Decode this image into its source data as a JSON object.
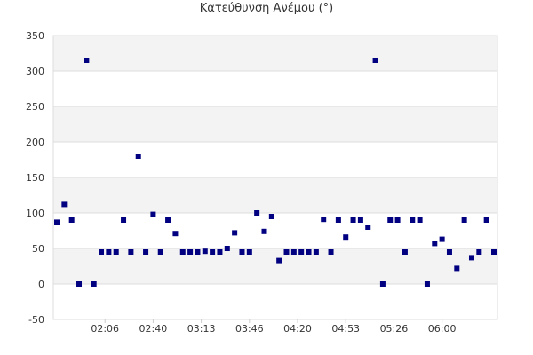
{
  "chart_data": {
    "type": "scatter",
    "title": "Κατεύθυνση Ανέμου (°)",
    "xlabel": "",
    "ylabel": "",
    "ylim": [
      -50,
      350
    ],
    "y_ticks": [
      -50,
      0,
      50,
      100,
      150,
      200,
      250,
      300,
      350
    ],
    "x_ticks": [
      "02:06",
      "02:40",
      "03:13",
      "03:46",
      "04:20",
      "04:53",
      "05:26",
      "06:00"
    ],
    "x_tick_index": [
      6.5,
      13,
      19.5,
      26,
      32.5,
      39,
      45.5,
      52
    ],
    "x_index_range": [
      0,
      59
    ],
    "grid": true,
    "band_colors": [
      "#f3f3f3",
      "#ffffff"
    ],
    "marker_color": "#000080",
    "series": [
      {
        "values": [
          87,
          112,
          90,
          0,
          315,
          0,
          45,
          45,
          45,
          90,
          45,
          180,
          45,
          98,
          45,
          90,
          71,
          45,
          45,
          45,
          46,
          45,
          45,
          50,
          72,
          45,
          45,
          100,
          74,
          95,
          33,
          45,
          45,
          45,
          45,
          45,
          91,
          45,
          90,
          66,
          90,
          90,
          80,
          315,
          0,
          90,
          90,
          45,
          90,
          90,
          0,
          57,
          63,
          45,
          22,
          90,
          37,
          45,
          90,
          45
        ]
      }
    ]
  }
}
